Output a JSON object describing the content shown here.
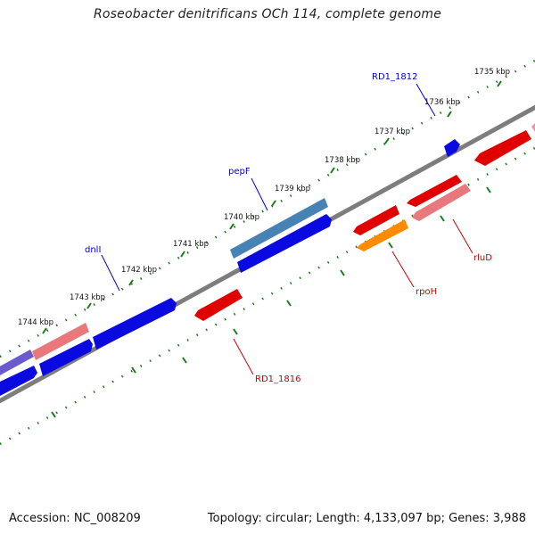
{
  "title": "Roseobacter denitrificans OCh 114, complete genome",
  "footer": {
    "accession": "Accession: NC_008209",
    "info": "Topology: circular; Length: 4,133,097 bp; Genes: 3,988"
  },
  "colors": {
    "backbone": "#808080",
    "ticks": "#1e7a1e",
    "forward_label": "#0000cc",
    "reverse_label": "#cc0000"
  },
  "kbp_labels": [
    "1735 kbp",
    "1736 kbp",
    "1737 kbp",
    "1738 kbp",
    "1739 kbp",
    "1740 kbp",
    "1741 kbp",
    "1742 kbp",
    "1743 kbp",
    "1744 kbp"
  ],
  "gene_labels": [
    {
      "name": "RD1_1812",
      "strand": "forward"
    },
    {
      "name": "pepF",
      "strand": "forward"
    },
    {
      "name": "dnlI",
      "strand": "forward"
    },
    {
      "name": "rluD",
      "strand": "reverse"
    },
    {
      "name": "rpoH",
      "strand": "reverse"
    },
    {
      "name": "RD1_1816",
      "strand": "reverse"
    }
  ]
}
